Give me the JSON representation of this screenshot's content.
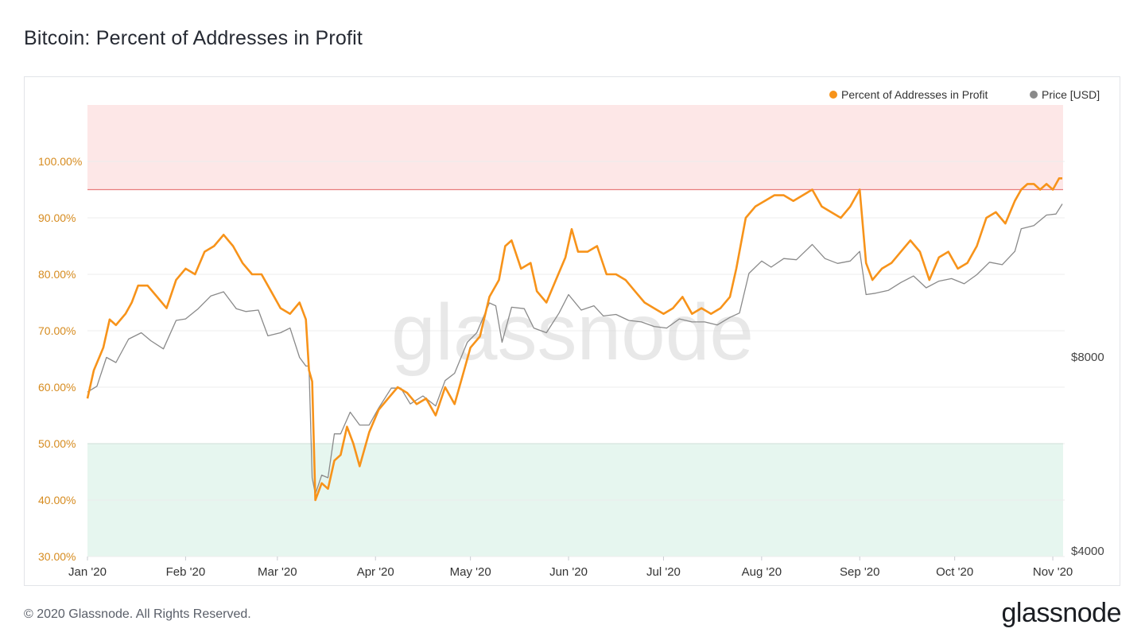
{
  "title": "Bitcoin: Percent of Addresses in Profit",
  "footer": "© 2020 Glassnode. All Rights Reserved.",
  "brand": "glassnode",
  "watermark": "glassnode",
  "colors": {
    "profit": "#f7931a",
    "price": "#8a8a8a",
    "upper_band": "#fde7e7",
    "upper_line": "#e87d7d",
    "lower_band": "#e6f6ef",
    "lower_line": "#7fc6a4",
    "left_axis_text": "#d68b1f",
    "right_axis_text": "#444444",
    "grid": "#ececec"
  },
  "chart_data": {
    "type": "line",
    "title": "Bitcoin: Percent of Addresses in Profit",
    "legend_position": "top-right",
    "x_labels": [
      "Jan '20",
      "Feb '20",
      "Mar '20",
      "Apr '20",
      "May '20",
      "Jun '20",
      "Jul '20",
      "Aug '20",
      "Sep '20",
      "Oct '20",
      "Nov '20"
    ],
    "y_left": {
      "ticks": [
        "30.00%",
        "40.00%",
        "50.00%",
        "60.00%",
        "70.00%",
        "80.00%",
        "90.00%",
        "100.00%"
      ],
      "range": [
        30,
        110
      ]
    },
    "y_right": {
      "ticks": [
        "$4000",
        "$8000"
      ],
      "scale": "log"
    },
    "reference_bands": {
      "upper": {
        "from": 95,
        "to": 110
      },
      "lower": {
        "from": 30,
        "to": 50
      }
    },
    "series": [
      {
        "name": "Percent of Addresses in Profit",
        "axis": "left",
        "points": [
          [
            "2020-01-01",
            58
          ],
          [
            "2020-01-03",
            63
          ],
          [
            "2020-01-06",
            67
          ],
          [
            "2020-01-08",
            72
          ],
          [
            "2020-01-10",
            71
          ],
          [
            "2020-01-13",
            73
          ],
          [
            "2020-01-15",
            75
          ],
          [
            "2020-01-17",
            78
          ],
          [
            "2020-01-20",
            78
          ],
          [
            "2020-01-23",
            76
          ],
          [
            "2020-01-26",
            74
          ],
          [
            "2020-01-29",
            79
          ],
          [
            "2020-02-01",
            81
          ],
          [
            "2020-02-04",
            80
          ],
          [
            "2020-02-07",
            84
          ],
          [
            "2020-02-10",
            85
          ],
          [
            "2020-02-13",
            87
          ],
          [
            "2020-02-16",
            85
          ],
          [
            "2020-02-19",
            82
          ],
          [
            "2020-02-22",
            80
          ],
          [
            "2020-02-25",
            80
          ],
          [
            "2020-02-28",
            77
          ],
          [
            "2020-03-02",
            74
          ],
          [
            "2020-03-05",
            73
          ],
          [
            "2020-03-08",
            75
          ],
          [
            "2020-03-10",
            72
          ],
          [
            "2020-03-11",
            63
          ],
          [
            "2020-03-12",
            61
          ],
          [
            "2020-03-13",
            40
          ],
          [
            "2020-03-15",
            43
          ],
          [
            "2020-03-17",
            42
          ],
          [
            "2020-03-19",
            47
          ],
          [
            "2020-03-21",
            48
          ],
          [
            "2020-03-23",
            53
          ],
          [
            "2020-03-25",
            50
          ],
          [
            "2020-03-27",
            46
          ],
          [
            "2020-03-30",
            52
          ],
          [
            "2020-04-02",
            56
          ],
          [
            "2020-04-05",
            58
          ],
          [
            "2020-04-08",
            60
          ],
          [
            "2020-04-11",
            59
          ],
          [
            "2020-04-14",
            57
          ],
          [
            "2020-04-17",
            58
          ],
          [
            "2020-04-20",
            55
          ],
          [
            "2020-04-23",
            60
          ],
          [
            "2020-04-26",
            57
          ],
          [
            "2020-04-29",
            63
          ],
          [
            "2020-05-01",
            67
          ],
          [
            "2020-05-04",
            69
          ],
          [
            "2020-05-07",
            76
          ],
          [
            "2020-05-10",
            79
          ],
          [
            "2020-05-12",
            85
          ],
          [
            "2020-05-14",
            86
          ],
          [
            "2020-05-17",
            81
          ],
          [
            "2020-05-20",
            82
          ],
          [
            "2020-05-22",
            77
          ],
          [
            "2020-05-25",
            75
          ],
          [
            "2020-05-28",
            79
          ],
          [
            "2020-05-31",
            83
          ],
          [
            "2020-06-02",
            88
          ],
          [
            "2020-06-04",
            84
          ],
          [
            "2020-06-07",
            84
          ],
          [
            "2020-06-10",
            85
          ],
          [
            "2020-06-13",
            80
          ],
          [
            "2020-06-16",
            80
          ],
          [
            "2020-06-19",
            79
          ],
          [
            "2020-06-22",
            77
          ],
          [
            "2020-06-25",
            75
          ],
          [
            "2020-06-28",
            74
          ],
          [
            "2020-07-01",
            73
          ],
          [
            "2020-07-04",
            74
          ],
          [
            "2020-07-07",
            76
          ],
          [
            "2020-07-10",
            73
          ],
          [
            "2020-07-13",
            74
          ],
          [
            "2020-07-16",
            73
          ],
          [
            "2020-07-19",
            74
          ],
          [
            "2020-07-22",
            76
          ],
          [
            "2020-07-24",
            81
          ],
          [
            "2020-07-27",
            90
          ],
          [
            "2020-07-30",
            92
          ],
          [
            "2020-08-02",
            93
          ],
          [
            "2020-08-05",
            94
          ],
          [
            "2020-08-08",
            94
          ],
          [
            "2020-08-11",
            93
          ],
          [
            "2020-08-14",
            94
          ],
          [
            "2020-08-17",
            95
          ],
          [
            "2020-08-20",
            92
          ],
          [
            "2020-08-23",
            91
          ],
          [
            "2020-08-26",
            90
          ],
          [
            "2020-08-29",
            92
          ],
          [
            "2020-09-01",
            95
          ],
          [
            "2020-09-03",
            82
          ],
          [
            "2020-09-05",
            79
          ],
          [
            "2020-09-08",
            81
          ],
          [
            "2020-09-11",
            82
          ],
          [
            "2020-09-14",
            84
          ],
          [
            "2020-09-17",
            86
          ],
          [
            "2020-09-20",
            84
          ],
          [
            "2020-09-23",
            79
          ],
          [
            "2020-09-26",
            83
          ],
          [
            "2020-09-29",
            84
          ],
          [
            "2020-10-02",
            81
          ],
          [
            "2020-10-05",
            82
          ],
          [
            "2020-10-08",
            85
          ],
          [
            "2020-10-11",
            90
          ],
          [
            "2020-10-14",
            91
          ],
          [
            "2020-10-17",
            89
          ],
          [
            "2020-10-20",
            93
          ],
          [
            "2020-10-22",
            95
          ],
          [
            "2020-10-24",
            96
          ],
          [
            "2020-10-26",
            96
          ],
          [
            "2020-10-28",
            95
          ],
          [
            "2020-10-30",
            96
          ],
          [
            "2020-11-01",
            95
          ],
          [
            "2020-11-03",
            97
          ],
          [
            "2020-11-04",
            97
          ]
        ]
      },
      {
        "name": "Price [USD]",
        "axis": "right",
        "points": [
          [
            "2020-01-01",
            7200
          ],
          [
            "2020-01-04",
            7350
          ],
          [
            "2020-01-07",
            8150
          ],
          [
            "2020-01-10",
            8000
          ],
          [
            "2020-01-14",
            8700
          ],
          [
            "2020-01-18",
            8900
          ],
          [
            "2020-01-21",
            8650
          ],
          [
            "2020-01-25",
            8400
          ],
          [
            "2020-01-29",
            9300
          ],
          [
            "2020-02-01",
            9350
          ],
          [
            "2020-02-05",
            9700
          ],
          [
            "2020-02-09",
            10150
          ],
          [
            "2020-02-13",
            10300
          ],
          [
            "2020-02-17",
            9700
          ],
          [
            "2020-02-20",
            9600
          ],
          [
            "2020-02-24",
            9650
          ],
          [
            "2020-02-27",
            8800
          ],
          [
            "2020-03-02",
            8900
          ],
          [
            "2020-03-05",
            9050
          ],
          [
            "2020-03-08",
            8150
          ],
          [
            "2020-03-10",
            7900
          ],
          [
            "2020-03-11",
            7900
          ],
          [
            "2020-03-12",
            5300
          ],
          [
            "2020-03-13",
            5000
          ],
          [
            "2020-03-15",
            5350
          ],
          [
            "2020-03-17",
            5300
          ],
          [
            "2020-03-19",
            6200
          ],
          [
            "2020-03-21",
            6200
          ],
          [
            "2020-03-24",
            6700
          ],
          [
            "2020-03-27",
            6400
          ],
          [
            "2020-03-30",
            6400
          ],
          [
            "2020-04-02",
            6800
          ],
          [
            "2020-04-06",
            7300
          ],
          [
            "2020-04-09",
            7300
          ],
          [
            "2020-04-12",
            6900
          ],
          [
            "2020-04-16",
            7100
          ],
          [
            "2020-04-20",
            6850
          ],
          [
            "2020-04-23",
            7500
          ],
          [
            "2020-04-26",
            7700
          ],
          [
            "2020-04-30",
            8600
          ],
          [
            "2020-05-03",
            8900
          ],
          [
            "2020-05-07",
            9900
          ],
          [
            "2020-05-09",
            9800
          ],
          [
            "2020-05-11",
            8600
          ],
          [
            "2020-05-14",
            9750
          ],
          [
            "2020-05-18",
            9700
          ],
          [
            "2020-05-21",
            9050
          ],
          [
            "2020-05-25",
            8900
          ],
          [
            "2020-05-29",
            9550
          ],
          [
            "2020-06-01",
            10200
          ],
          [
            "2020-06-05",
            9650
          ],
          [
            "2020-06-09",
            9800
          ],
          [
            "2020-06-12",
            9450
          ],
          [
            "2020-06-16",
            9500
          ],
          [
            "2020-06-20",
            9300
          ],
          [
            "2020-06-24",
            9250
          ],
          [
            "2020-06-28",
            9100
          ],
          [
            "2020-07-02",
            9050
          ],
          [
            "2020-07-06",
            9350
          ],
          [
            "2020-07-10",
            9250
          ],
          [
            "2020-07-14",
            9250
          ],
          [
            "2020-07-18",
            9150
          ],
          [
            "2020-07-22",
            9400
          ],
          [
            "2020-07-25",
            9550
          ],
          [
            "2020-07-28",
            11000
          ],
          [
            "2020-08-01",
            11500
          ],
          [
            "2020-08-04",
            11250
          ],
          [
            "2020-08-08",
            11600
          ],
          [
            "2020-08-12",
            11550
          ],
          [
            "2020-08-17",
            12200
          ],
          [
            "2020-08-21",
            11600
          ],
          [
            "2020-08-25",
            11400
          ],
          [
            "2020-08-29",
            11500
          ],
          [
            "2020-09-01",
            11900
          ],
          [
            "2020-09-03",
            10200
          ],
          [
            "2020-09-06",
            10250
          ],
          [
            "2020-09-10",
            10350
          ],
          [
            "2020-09-14",
            10650
          ],
          [
            "2020-09-18",
            10900
          ],
          [
            "2020-09-22",
            10450
          ],
          [
            "2020-09-26",
            10700
          ],
          [
            "2020-09-30",
            10800
          ],
          [
            "2020-10-04",
            10600
          ],
          [
            "2020-10-08",
            10950
          ],
          [
            "2020-10-12",
            11450
          ],
          [
            "2020-10-16",
            11350
          ],
          [
            "2020-10-20",
            11900
          ],
          [
            "2020-10-22",
            12900
          ],
          [
            "2020-10-26",
            13050
          ],
          [
            "2020-10-30",
            13550
          ],
          [
            "2020-11-02",
            13600
          ],
          [
            "2020-11-04",
            14100
          ]
        ]
      }
    ]
  }
}
